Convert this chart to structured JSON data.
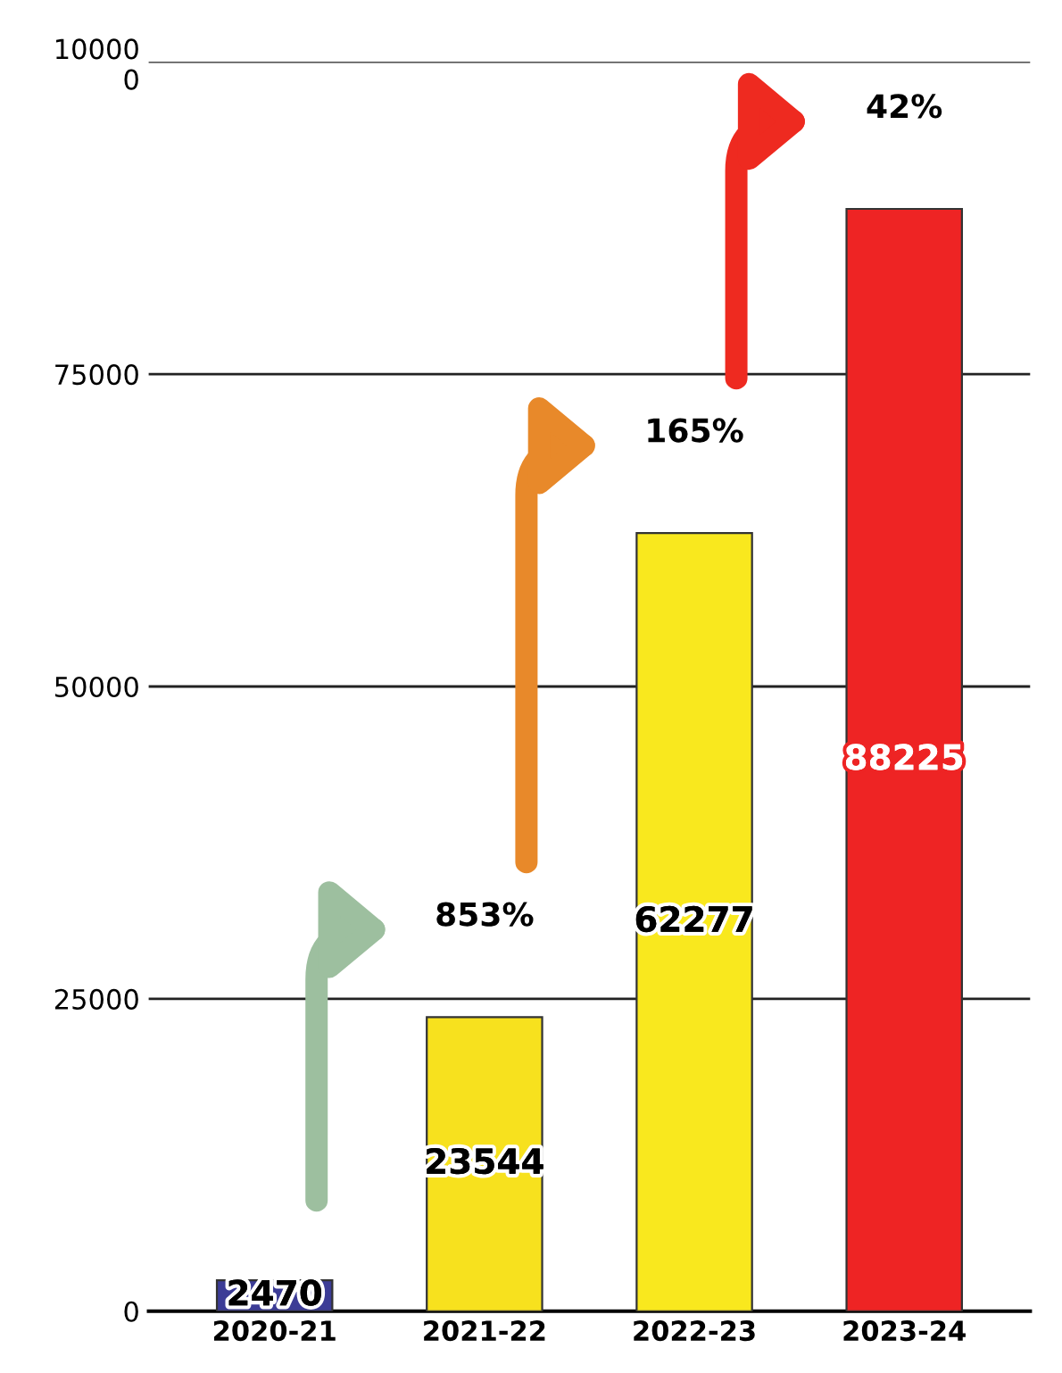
{
  "chart_data": {
    "type": "bar",
    "categories": [
      "2020-21",
      "2021-22",
      "2022-23",
      "2023-24"
    ],
    "values": [
      2470,
      23544,
      62277,
      88225
    ],
    "colors": [
      "#3c3c96",
      "#f7e11e",
      "#f9e81e",
      "#ee2424"
    ],
    "ylim": [
      0,
      100000
    ],
    "yticks": [
      0,
      25000,
      50000,
      75000,
      {
        "value": 100000,
        "label": "10000\n0"
      }
    ],
    "grid": "y",
    "data_labels": true,
    "annotations": [
      "853%",
      "165%",
      "42%"
    ]
  }
}
